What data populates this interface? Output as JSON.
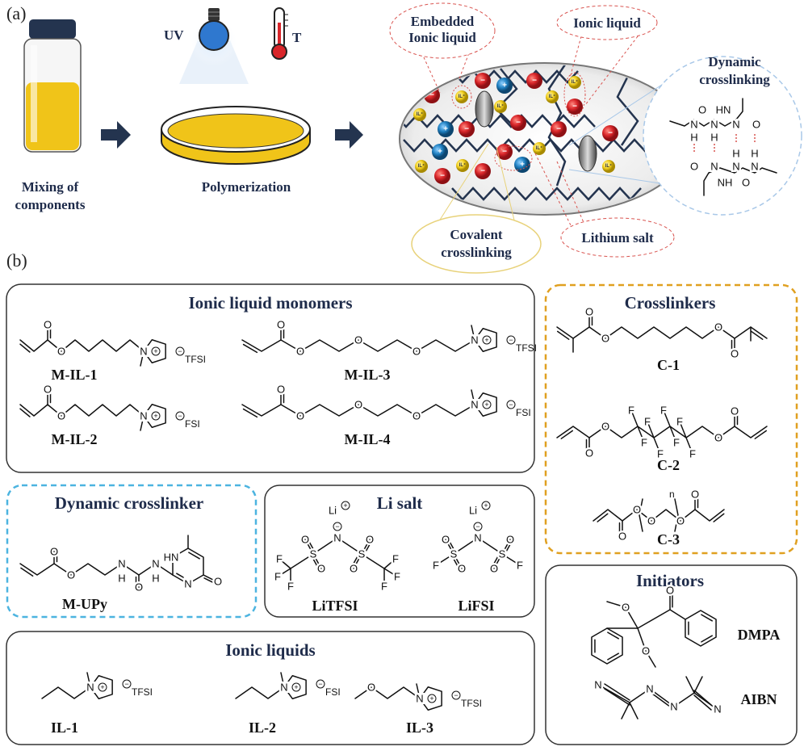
{
  "panel_labels": {
    "a": "(a)",
    "b": "(b)"
  },
  "steps": {
    "mixing": [
      "Mixing of",
      "components"
    ],
    "polymerization": "Polymerization",
    "uv": "UV",
    "temp": "T"
  },
  "callouts": {
    "embedded": [
      "Embedded",
      "Ionic liquid"
    ],
    "ionic_liquid": "Ionic liquid",
    "dynamic": [
      "Dynamic",
      "crosslinking"
    ],
    "covalent": [
      "Covalent",
      "crosslinking"
    ],
    "lithium": "Lithium salt"
  },
  "particles": {
    "anion": "−",
    "cation": "+",
    "il": "IL⁺"
  },
  "panels": {
    "monomers": {
      "title": "Ionic liquid monomers",
      "items": [
        "M-IL-1",
        "M-IL-3",
        "M-IL-2",
        "M-IL-4"
      ]
    },
    "crosslinkers": {
      "title": "Crosslinkers",
      "items": [
        "C-1",
        "C-2",
        "C-3"
      ]
    },
    "dynamic": {
      "title": "Dynamic crosslinker",
      "items": [
        "M-UPy"
      ]
    },
    "lisalt": {
      "title": "Li salt",
      "items": [
        "LiTFSI",
        "LiFSI"
      ]
    },
    "ionic_liquids": {
      "title": "Ionic liquids",
      "items": [
        "IL-1",
        "IL-2",
        "IL-3"
      ]
    },
    "initiators": {
      "title": "Initiators",
      "items": [
        "DMPA",
        "AIBN"
      ]
    }
  },
  "anions": {
    "tfsi": "TFSI",
    "fsi": "FSI"
  },
  "atoms": {
    "O": "O",
    "N": "N",
    "F": "F",
    "S": "S",
    "H": "H",
    "HN": "HN",
    "NH": "NH",
    "Li": "Li",
    "n": "n"
  },
  "charges": {
    "plus": "+",
    "minus": "−"
  },
  "colors": {
    "navy": "#1e2b4a",
    "liquid_yellow": "#f0c419",
    "anion_red": "#d9262a",
    "cation_blue": "#1f7fc0",
    "il_yellow": "#f2d021",
    "crosslinker_border": "#e0a020",
    "dynamic_border": "#4cb4e0",
    "callout_red": "#d9534f",
    "callout_yellow": "#e8d27a"
  }
}
